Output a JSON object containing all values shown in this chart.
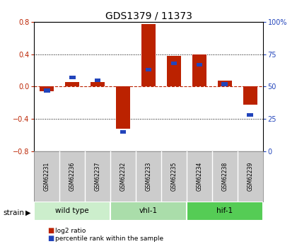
{
  "title": "GDS1379 / 11373",
  "samples": [
    "GSM62231",
    "GSM62236",
    "GSM62237",
    "GSM62232",
    "GSM62233",
    "GSM62235",
    "GSM62234",
    "GSM62238",
    "GSM62239"
  ],
  "log2_ratios": [
    -0.055,
    0.055,
    0.055,
    -0.52,
    0.77,
    0.38,
    0.4,
    0.07,
    -0.22
  ],
  "percentile_ranks": [
    47,
    57,
    55,
    15,
    63,
    68,
    67,
    52,
    28
  ],
  "ylim_left": [
    -0.8,
    0.8
  ],
  "ylim_right": [
    0,
    100
  ],
  "yticks_left": [
    -0.8,
    -0.4,
    0.0,
    0.4,
    0.8
  ],
  "yticks_right": [
    0,
    25,
    50,
    75,
    100
  ],
  "ytick_labels_right": [
    "0",
    "25",
    "50",
    "75",
    "100%"
  ],
  "dotted_lines": [
    -0.4,
    0.4
  ],
  "bar_color_red": "#bb2200",
  "bar_color_blue": "#2244bb",
  "groups": [
    {
      "label": "wild type",
      "indices": [
        0,
        1,
        2
      ],
      "color": "#cceecc"
    },
    {
      "label": "vhl-1",
      "indices": [
        3,
        4,
        5
      ],
      "color": "#aaddaa"
    },
    {
      "label": "hif-1",
      "indices": [
        6,
        7,
        8
      ],
      "color": "#55cc55"
    }
  ],
  "strain_label": "strain",
  "legend_red": "log2 ratio",
  "legend_blue": "percentile rank within the sample",
  "bar_width": 0.55,
  "title_fontsize": 10,
  "axis_tick_fontsize": 7,
  "background_color": "#ffffff"
}
